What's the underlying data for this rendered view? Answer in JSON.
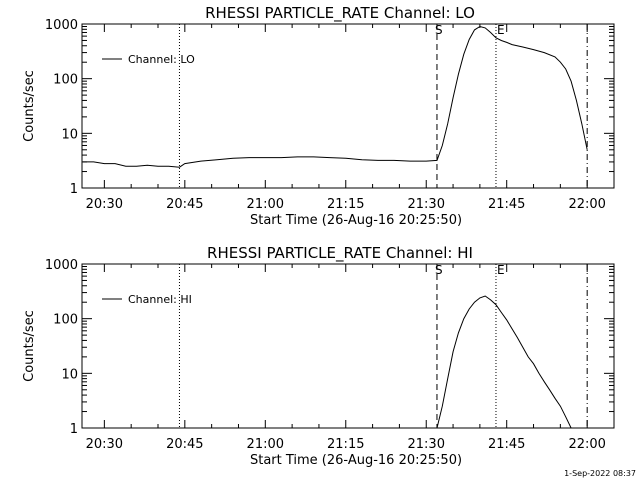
{
  "footer_stamp": "1-Sep-2022 08:37",
  "colors": {
    "line": "#000000",
    "background": "#ffffff"
  },
  "chart_data": [
    {
      "type": "line",
      "title": "RHESSI PARTICLE_RATE Channel: LO",
      "xlabel": "Start Time (26-Aug-16 20:25:50)",
      "ylabel": "Counts/sec",
      "y_scale": "log",
      "ylim": [
        1,
        1000
      ],
      "x_ticks": [
        "20:30",
        "20:45",
        "21:00",
        "21:15",
        "21:30",
        "21:45",
        "22:00"
      ],
      "y_ticks": [
        "1",
        "10",
        "100",
        "1000"
      ],
      "legend": {
        "position": "top-left",
        "entries": [
          "Channel: LO"
        ]
      },
      "markers": {
        "start_label": "S",
        "end_label": "E"
      },
      "vertical_lines": [
        {
          "time": "20:44",
          "style": "dotted"
        },
        {
          "time": "21:32",
          "style": "dashed",
          "label": "S"
        },
        {
          "time": "21:43",
          "style": "dotted",
          "label": "E"
        },
        {
          "time": "22:00",
          "style": "dash-dot"
        }
      ],
      "series": [
        {
          "name": "Channel: LO",
          "x": [
            "20:26",
            "20:28",
            "20:30",
            "20:32",
            "20:34",
            "20:36",
            "20:38",
            "20:40",
            "20:42",
            "20:44",
            "20:45",
            "20:48",
            "20:51",
            "20:54",
            "20:57",
            "21:00",
            "21:03",
            "21:06",
            "21:09",
            "21:12",
            "21:15",
            "21:18",
            "21:21",
            "21:24",
            "21:27",
            "21:30",
            "21:32",
            "21:33",
            "21:34",
            "21:35",
            "21:36",
            "21:37",
            "21:38",
            "21:39",
            "21:40",
            "21:41",
            "21:42",
            "21:43",
            "21:44",
            "21:45",
            "21:46",
            "21:48",
            "21:50",
            "21:52",
            "21:54",
            "21:55",
            "21:56",
            "21:57",
            "21:58",
            "21:59",
            "22:00"
          ],
          "values": [
            3,
            3,
            2.8,
            2.8,
            2.5,
            2.5,
            2.6,
            2.5,
            2.5,
            2.4,
            2.8,
            3.1,
            3.3,
            3.5,
            3.6,
            3.6,
            3.6,
            3.7,
            3.7,
            3.6,
            3.5,
            3.3,
            3.2,
            3.2,
            3.1,
            3.1,
            3.2,
            6,
            15,
            45,
            120,
            280,
            520,
            780,
            900,
            850,
            700,
            560,
            500,
            460,
            420,
            380,
            340,
            300,
            250,
            200,
            150,
            90,
            40,
            15,
            5
          ]
        }
      ]
    },
    {
      "type": "line",
      "title": "RHESSI PARTICLE_RATE Channel: HI",
      "xlabel": "Start Time (26-Aug-16 20:25:50)",
      "ylabel": "Counts/sec",
      "y_scale": "log",
      "ylim": [
        1,
        1000
      ],
      "x_ticks": [
        "20:30",
        "20:45",
        "21:00",
        "21:15",
        "21:30",
        "21:45",
        "22:00"
      ],
      "y_ticks": [
        "1",
        "10",
        "100",
        "1000"
      ],
      "legend": {
        "position": "top-left",
        "entries": [
          "Channel: HI"
        ]
      },
      "markers": {
        "start_label": "S",
        "end_label": "E"
      },
      "vertical_lines": [
        {
          "time": "20:44",
          "style": "dotted"
        },
        {
          "time": "21:32",
          "style": "dashed",
          "label": "S"
        },
        {
          "time": "21:43",
          "style": "dotted",
          "label": "E"
        },
        {
          "time": "22:00",
          "style": "dash-dot"
        }
      ],
      "series": [
        {
          "name": "Channel: HI",
          "x": [
            "21:32",
            "21:33",
            "21:34",
            "21:35",
            "21:36",
            "21:37",
            "21:38",
            "21:39",
            "21:40",
            "21:41",
            "21:42",
            "21:43",
            "21:44",
            "21:45",
            "21:46",
            "21:47",
            "21:48",
            "21:49",
            "21:50",
            "21:51",
            "21:52",
            "21:53",
            "21:54",
            "21:55",
            "21:56",
            "21:57"
          ],
          "values": [
            1,
            2.5,
            8,
            25,
            55,
            100,
            150,
            200,
            240,
            260,
            220,
            180,
            130,
            95,
            65,
            45,
            30,
            20,
            15,
            10,
            7,
            5,
            3.5,
            2.5,
            1.6,
            1
          ]
        }
      ]
    }
  ]
}
